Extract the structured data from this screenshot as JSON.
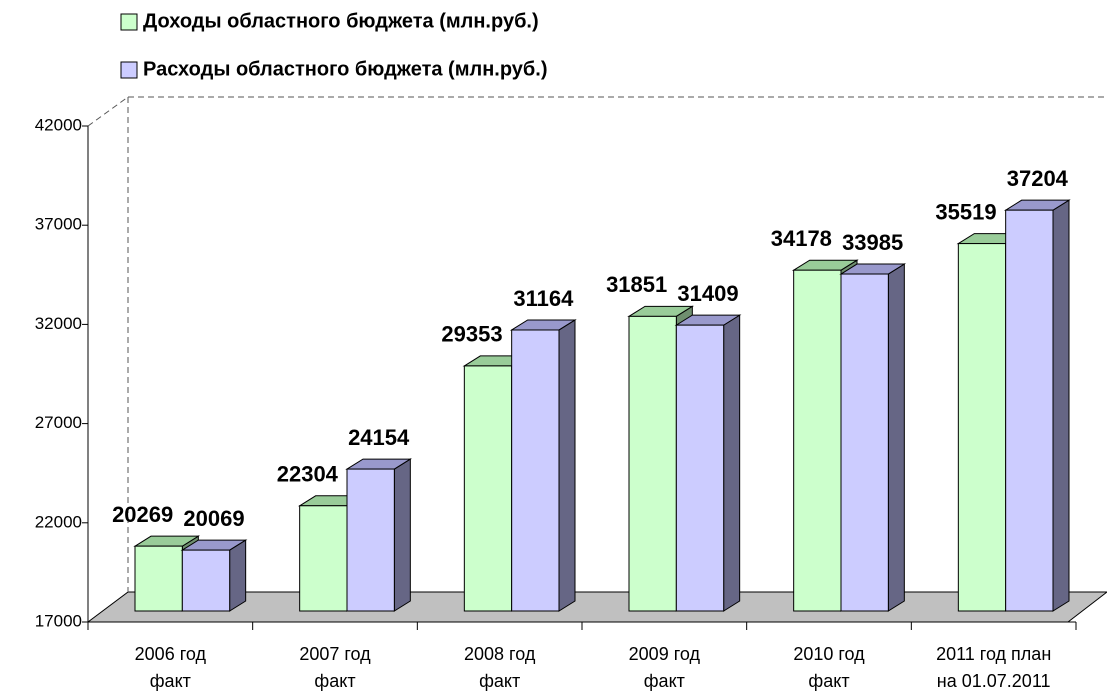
{
  "chart_data": {
    "type": "bar3d",
    "categories": [
      [
        "2006 год",
        "факт"
      ],
      [
        "2007 год",
        "факт"
      ],
      [
        "2008 год",
        "факт"
      ],
      [
        "2009 год",
        "факт"
      ],
      [
        "2010 год",
        "факт"
      ],
      [
        "2011 год план",
        "на 01.07.2011"
      ]
    ],
    "series": [
      {
        "name": "Доходы областного бюджета (млн.руб.)",
        "color": "#ccffcc",
        "top": "#99cc99",
        "side": "#6f8f6f",
        "values": [
          20269,
          22304,
          29353,
          31851,
          34178,
          35519
        ]
      },
      {
        "name": "Расходы областного бюджета (млн.руб.)",
        "color": "#ccccff",
        "top": "#9999cc",
        "side": "#666685",
        "values": [
          20069,
          24154,
          31164,
          31409,
          33985,
          37204
        ]
      }
    ],
    "ylim": [
      17000,
      42000
    ],
    "yticks": [
      17000,
      22000,
      27000,
      32000,
      37000,
      42000
    ],
    "grid": false
  }
}
